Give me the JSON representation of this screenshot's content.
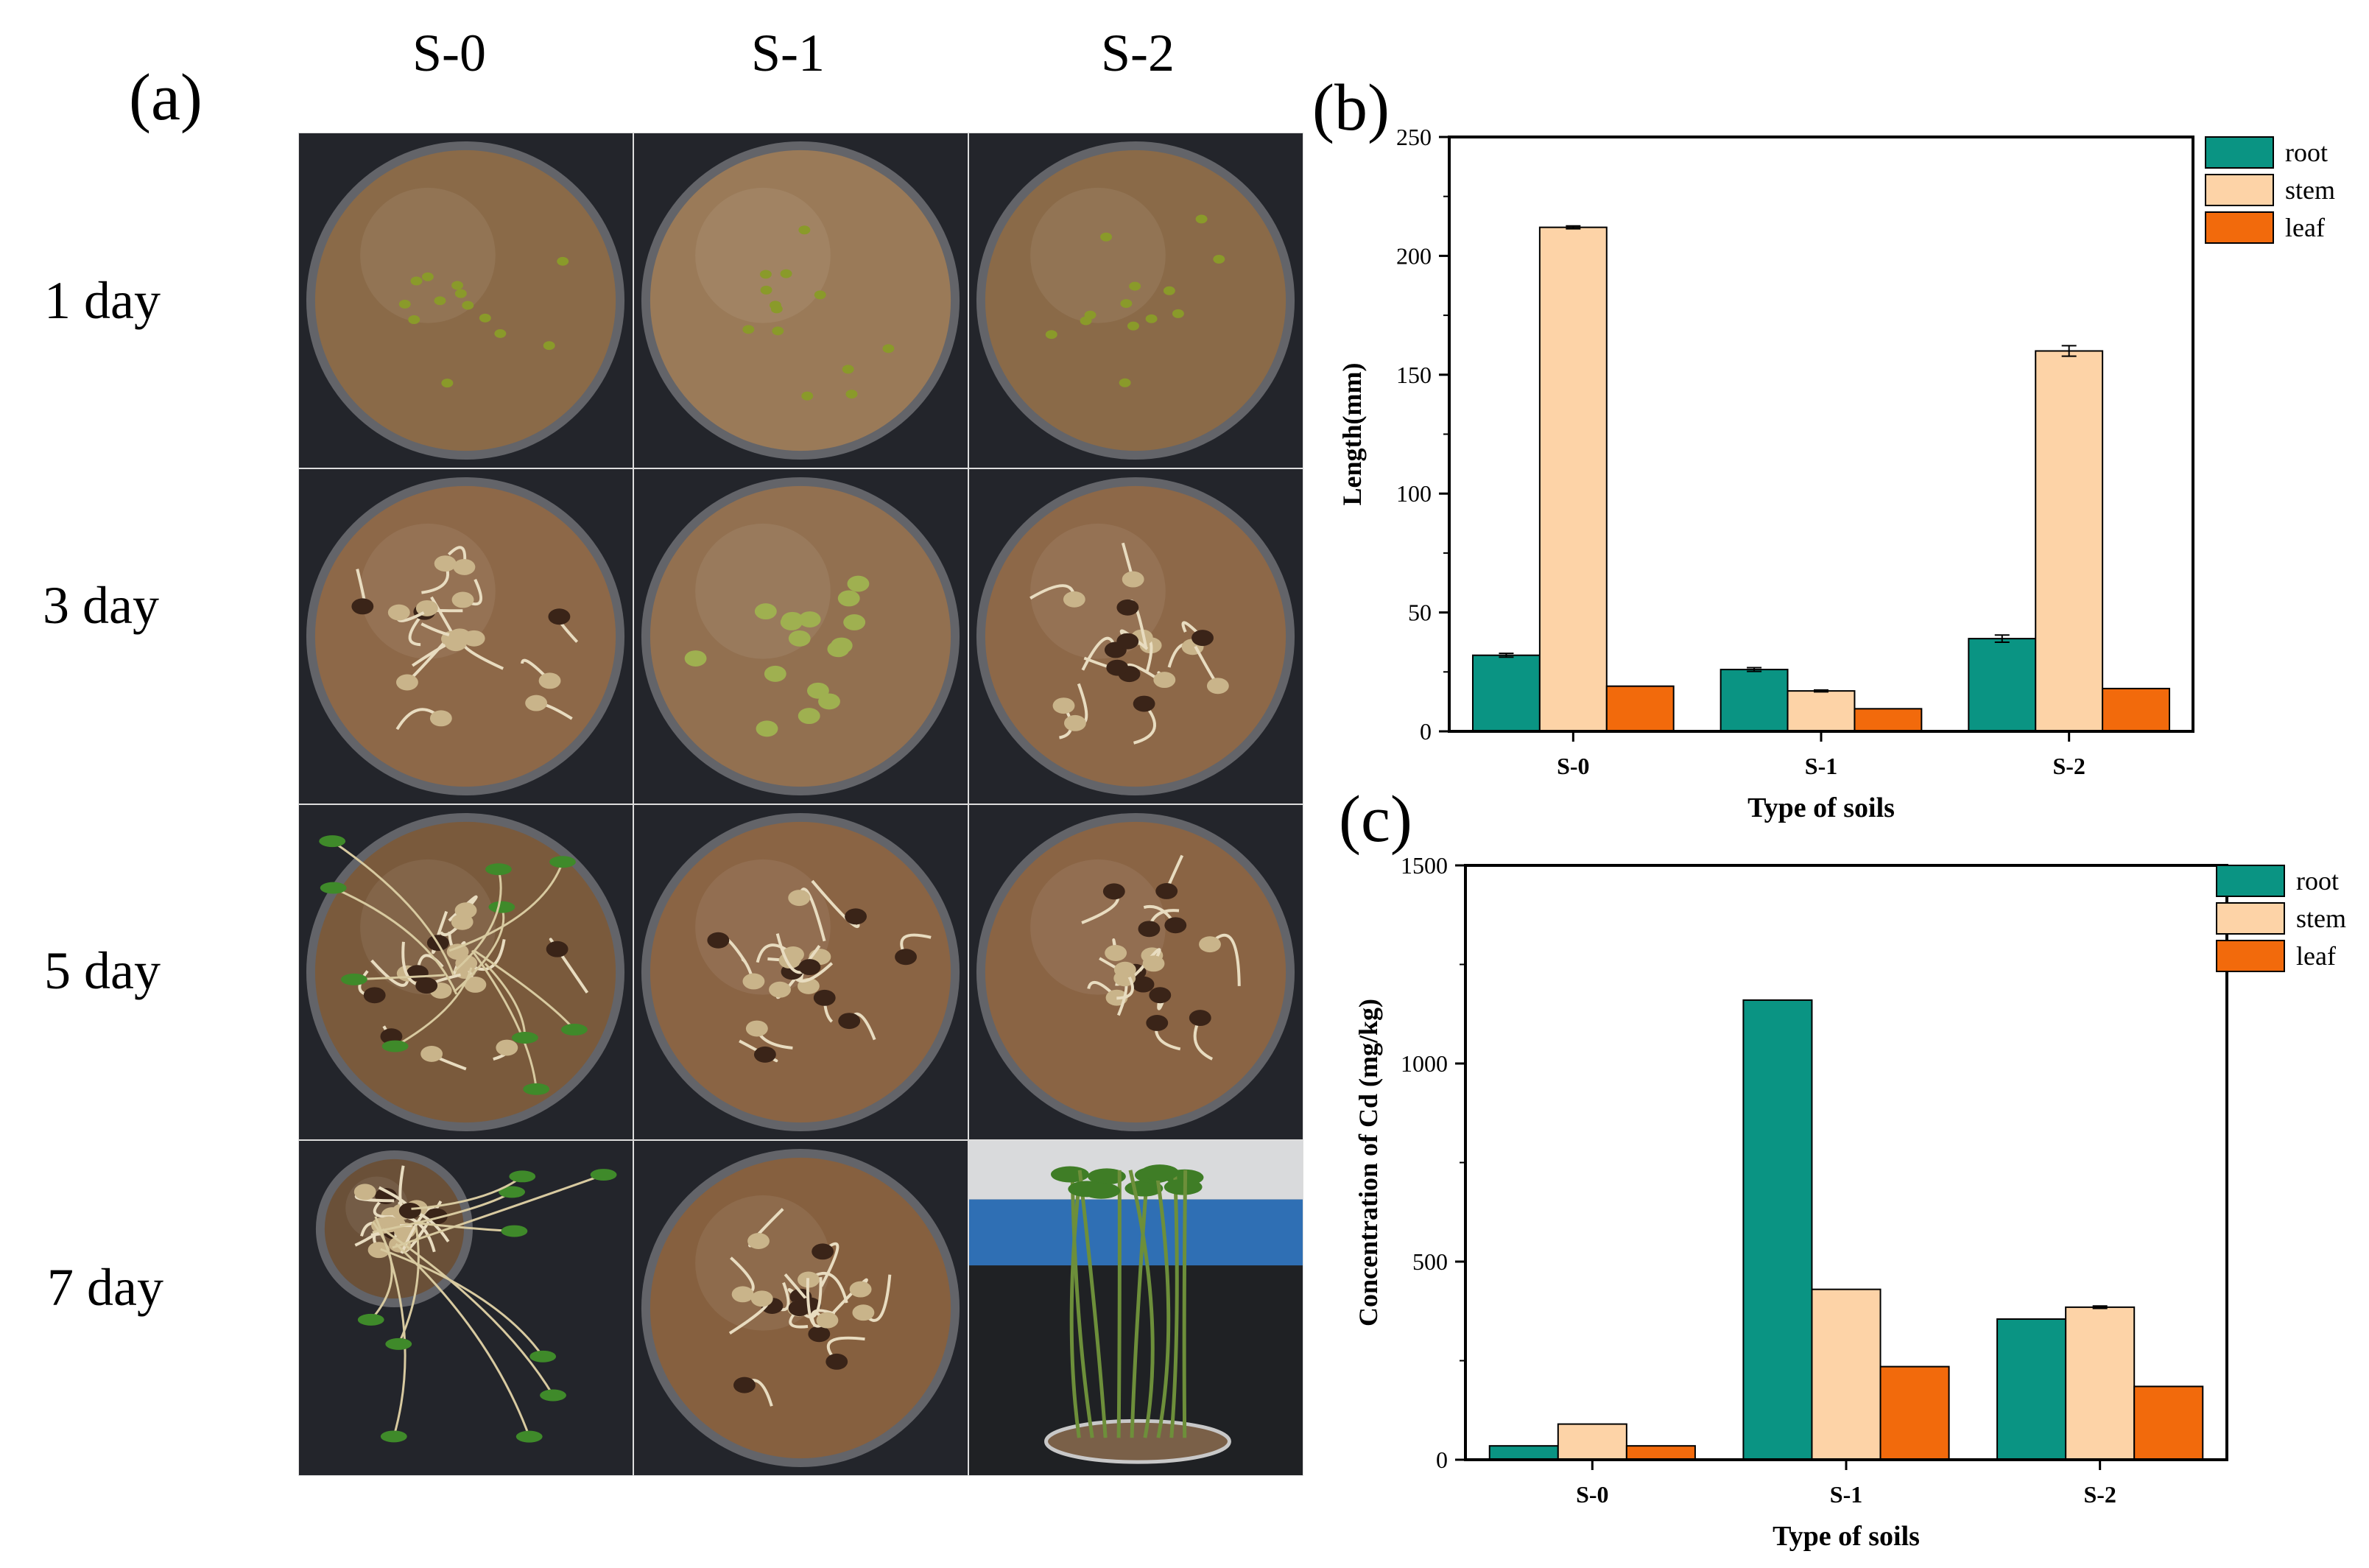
{
  "panel_a": {
    "label": "(a)",
    "columns": [
      "S-0",
      "S-1",
      "S-2"
    ],
    "rows": [
      "1 day",
      "3 day",
      "5 day",
      "7 day"
    ],
    "photos": [
      {
        "name": "s0-day1",
        "stage": "seed",
        "color": "#8a6a48"
      },
      {
        "name": "s1-day1",
        "stage": "seed",
        "color": "#9a7a58"
      },
      {
        "name": "s2-day1",
        "stage": "seed",
        "color": "#8a6a48"
      },
      {
        "name": "s0-day3",
        "stage": "sprout",
        "color": "#8d6848"
      },
      {
        "name": "s1-day3",
        "stage": "swollen",
        "color": "#927050"
      },
      {
        "name": "s2-day3",
        "stage": "sprout",
        "color": "#8d6848"
      },
      {
        "name": "s0-day5",
        "stage": "seedling",
        "color": "#7a5a3c"
      },
      {
        "name": "s1-day5",
        "stage": "sprout",
        "color": "#8a6444"
      },
      {
        "name": "s2-day5",
        "stage": "sprout",
        "color": "#8a6444"
      },
      {
        "name": "s0-day7",
        "stage": "tall",
        "color": "#6a5038"
      },
      {
        "name": "s1-day7",
        "stage": "sprout",
        "color": "#86603f"
      },
      {
        "name": "s2-day7",
        "stage": "side",
        "color": "#7a6048"
      }
    ]
  },
  "chart_data": [
    {
      "panel": "(b)",
      "type": "bar",
      "categories": [
        "S-0",
        "S-1",
        "S-2"
      ],
      "series": [
        {
          "name": "root",
          "values": [
            32,
            26,
            39
          ],
          "errors": [
            0.8,
            0.8,
            1.5
          ],
          "color": "#0a9483"
        },
        {
          "name": "stem",
          "values": [
            212,
            17,
            160
          ],
          "errors": [
            0.6,
            0.4,
            2.2
          ],
          "color": "#fdd3a7"
        },
        {
          "name": "leaf",
          "values": [
            19,
            9.5,
            18
          ],
          "errors": [
            0,
            0,
            0
          ],
          "color": "#f26a0c"
        }
      ],
      "xlabel": "Type of soils",
      "ylabel": "Length(mm)",
      "ylim": [
        0,
        250
      ],
      "yticks": [
        0,
        50,
        100,
        150,
        200,
        250
      ],
      "legend": "outside-right-top"
    },
    {
      "panel": "(c)",
      "type": "bar",
      "categories": [
        "S-0",
        "S-1",
        "S-2"
      ],
      "series": [
        {
          "name": "root",
          "values": [
            35,
            1160,
            355
          ],
          "errors": [
            0,
            0,
            0
          ],
          "color": "#0a9483"
        },
        {
          "name": "stem",
          "values": [
            90,
            430,
            385
          ],
          "errors": [
            0,
            0,
            3
          ],
          "color": "#fdd3a7"
        },
        {
          "name": "leaf",
          "values": [
            35,
            235,
            185
          ],
          "errors": [
            0,
            0,
            0
          ],
          "color": "#f26a0c"
        }
      ],
      "xlabel": "Type of soils",
      "ylabel": "Concentration of Cd (mg/kg)",
      "ylim": [
        0,
        1500
      ],
      "yticks": [
        0,
        500,
        1000,
        1500
      ],
      "legend": "inside-top-right"
    }
  ]
}
